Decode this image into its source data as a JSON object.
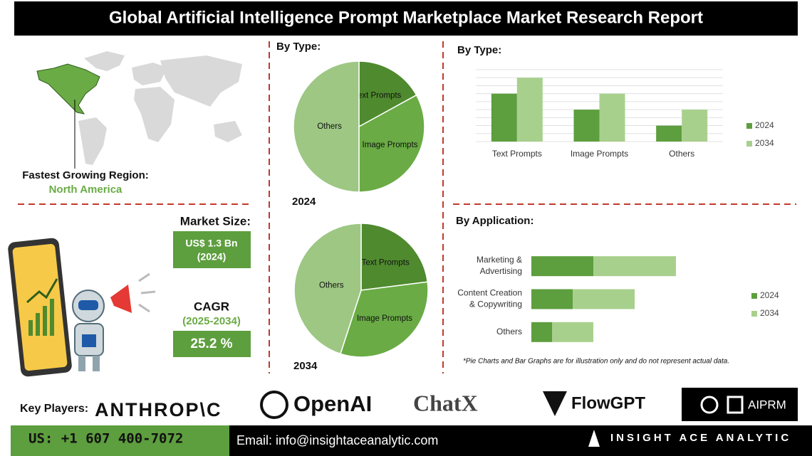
{
  "header": {
    "title": "Global Artificial Intelligence Prompt Marketplace Market Research Report"
  },
  "region": {
    "label": "Fastest Growing Region:",
    "value": "North America"
  },
  "market_size": {
    "label": "Market Size:",
    "value": "US$ 1.3 Bn",
    "year": "(2024)"
  },
  "cagr": {
    "label": "CAGR",
    "period": "(2025-2034)",
    "value": "25.2 %"
  },
  "chart_data": [
    {
      "type": "pie",
      "title": "By Type:",
      "subtitle": "2024",
      "categories": [
        "Text Prompts",
        "Image Prompts",
        "Others"
      ],
      "values": [
        17,
        33,
        50
      ],
      "colors": [
        "#4f8a2f",
        "#6aab45",
        "#9dc783"
      ]
    },
    {
      "type": "pie",
      "subtitle": "2034",
      "categories": [
        "Text Prompts",
        "Image Prompts",
        "Others"
      ],
      "values": [
        23,
        32,
        45
      ],
      "colors": [
        "#4f8a2f",
        "#6aab45",
        "#9dc783"
      ]
    },
    {
      "type": "bar",
      "title": "By Type:",
      "categories": [
        "Text Prompts",
        "Image Prompts",
        "Others"
      ],
      "series": [
        {
          "name": "2024",
          "color": "#5d9e3e",
          "values": [
            6,
            4,
            2
          ]
        },
        {
          "name": "2034",
          "color": "#a8d08d",
          "values": [
            8,
            6,
            4
          ]
        }
      ],
      "ylim": [
        0,
        9
      ],
      "grid": true
    },
    {
      "type": "hbar-stacked",
      "title": "By Application:",
      "categories": [
        "Marketing &\nAdvertising",
        "Content Creation\n& Copywriting",
        "Others"
      ],
      "series": [
        {
          "name": "2024",
          "color": "#5d9e3e",
          "values": [
            3,
            2,
            1
          ]
        },
        {
          "name": "2034",
          "color": "#a8d08d",
          "values": [
            4,
            3,
            2
          ]
        }
      ],
      "xlim": [
        0,
        8
      ]
    }
  ],
  "note": "*Pie Charts and Bar Graphs are for illustration only and do not represent actual data.",
  "key_players": {
    "label": "Key Players:",
    "names": [
      "ANTHROP\\C",
      "OpenAI",
      "ChatX",
      "FlowGPT",
      "AIPRM"
    ]
  },
  "footer": {
    "phone": "US: +1 607 400-7072",
    "email": "Email: info@insightaceanalytic.com",
    "brand": "INSIGHT ACE ANALYTIC"
  }
}
